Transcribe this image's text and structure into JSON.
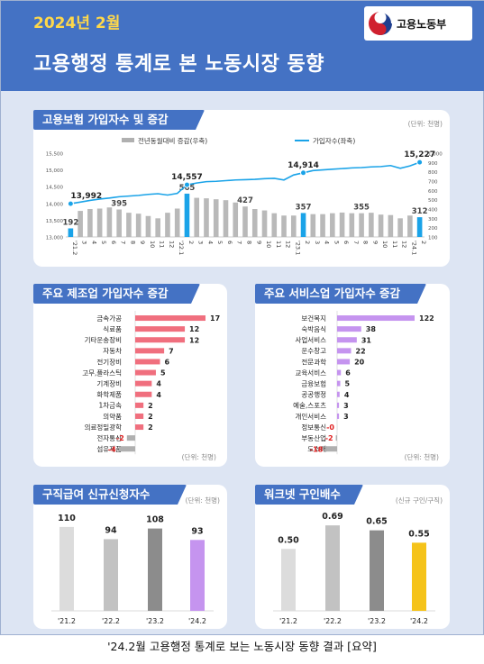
{
  "header": {
    "period": "2024년 2월",
    "title": "고용행정 통계로 본 노동시장 동향",
    "logo_text": "고용노동부"
  },
  "insured": {
    "title": "고용보험 가입자수 및 증감",
    "unit": "(단위: 천명)",
    "legend_bar": "전년동월대비 증감(우축)",
    "legend_line": "가입자수(좌축)",
    "left_ticks": [
      "15,500",
      "15,000",
      "14,500",
      "14,000",
      "13,500",
      "13,000"
    ],
    "right_ticks": [
      "1,000",
      "900",
      "800",
      "700",
      "600",
      "500",
      "400",
      "300",
      "200",
      "100"
    ]
  },
  "manufacturing": {
    "title": "주요 제조업 가입자수 증감",
    "unit": "(단위: 천명)"
  },
  "services": {
    "title": "주요 서비스업 가입자수 증감",
    "unit": "(단위: 천명)"
  },
  "jobseeking": {
    "title": "구직급여 신규신청자수",
    "unit": "(단위: 천명)"
  },
  "worknet": {
    "title": "워크넷 구인배수",
    "unit": "(신규 구인/구직)"
  },
  "footer": "'24.2월 고용행정 통계로 보는 노동시장 동향 결과 [요약]",
  "chart_data": [
    {
      "type": "bar+line",
      "name_ref": "insured",
      "x": [
        "'21.2",
        "3",
        "4",
        "5",
        "6",
        "7",
        "8",
        "9",
        "10",
        "11",
        "12",
        "'22.1",
        "2",
        "3",
        "4",
        "5",
        "6",
        "7",
        "8",
        "9",
        "10",
        "11",
        "12",
        "'23.1",
        "2",
        "3",
        "4",
        "5",
        "6",
        "7",
        "8",
        "9",
        "10",
        "11",
        "12",
        "'24.1",
        "2"
      ],
      "series": [
        {
          "name": "전년동월대비 증감(우축)",
          "axis": "right",
          "values": [
            192,
            380,
            400,
            405,
            417,
            395,
            360,
            350,
            325,
            300,
            360,
            405,
            565,
            520,
            515,
            505,
            495,
            470,
            427,
            400,
            385,
            355,
            330,
            330,
            357,
            345,
            345,
            355,
            362,
            355,
            355,
            360,
            340,
            335,
            300,
            330,
            312
          ]
        },
        {
          "name": "가입자수(좌축)",
          "axis": "left",
          "values": [
            13992,
            14040,
            14090,
            14130,
            14160,
            14200,
            14220,
            14240,
            14270,
            14290,
            14250,
            14300,
            14557,
            14610,
            14650,
            14660,
            14680,
            14700,
            14710,
            14720,
            14740,
            14750,
            14700,
            14850,
            14914,
            14980,
            15000,
            15020,
            15040,
            15060,
            15070,
            15090,
            15100,
            15130,
            15050,
            15120,
            15227
          ]
        }
      ],
      "labels_right": {
        "'21.2": 192,
        "6": 417,
        "2_22": 565,
        "7_22": 427,
        "2_23": 357,
        "7_23": 362,
        "2_24": 312
      },
      "labels_left": {
        "'21.2": 13992,
        "2_22": 14557,
        "2_23": 14914,
        "2_24": 15227
      },
      "ylim_left": [
        13000,
        15500
      ],
      "ylim_right": [
        100,
        1000
      ],
      "highlight": [
        "'21.2",
        "2_22",
        "2_23",
        "2_24"
      ]
    },
    {
      "type": "bar",
      "orientation": "horizontal",
      "name_ref": "manufacturing",
      "categories": [
        "금속가공",
        "식료품",
        "기타운송장비",
        "자동차",
        "전기장비",
        "고무,플라스틱",
        "기계장비",
        "화학제품",
        "1차금속",
        "의약품",
        "의료정밀광학",
        "전자통신",
        "섬유제품"
      ],
      "values": [
        17,
        12,
        12,
        7,
        6,
        5,
        4,
        4,
        2,
        2,
        2,
        -2,
        -4
      ]
    },
    {
      "type": "bar",
      "orientation": "horizontal",
      "name_ref": "services",
      "categories": [
        "보건복지",
        "숙박음식",
        "사업서비스",
        "운수창고",
        "전문과학",
        "교육서비스",
        "금융보험",
        "공공행정",
        "예술,스포츠",
        "개인서비스",
        "정보통신",
        "부동산업",
        "도소매"
      ],
      "values": [
        122,
        38,
        31,
        22,
        20,
        6,
        5,
        4,
        3,
        3,
        0,
        -2,
        -18
      ],
      "value_labels": [
        "122",
        "38",
        "31",
        "22",
        "20",
        "6",
        "5",
        "4",
        "3",
        "3",
        "-0",
        "-2",
        "-18"
      ]
    },
    {
      "type": "bar",
      "name_ref": "jobseeking",
      "categories": [
        "'21.2",
        "'22.2",
        "'23.2",
        "'24.2"
      ],
      "values": [
        110,
        94,
        108,
        93
      ],
      "value_labels": [
        "110",
        "94",
        "108",
        "93"
      ],
      "ylim": [
        0,
        130
      ]
    },
    {
      "type": "bar",
      "name_ref": "worknet",
      "categories": [
        "'21.2",
        "'22.2",
        "'23.2",
        "'24.2"
      ],
      "values": [
        0.5,
        0.69,
        0.65,
        0.55
      ],
      "value_labels": [
        "0.50",
        "0.69",
        "0.65",
        "0.55"
      ],
      "ylim": [
        0,
        0.8
      ]
    }
  ]
}
